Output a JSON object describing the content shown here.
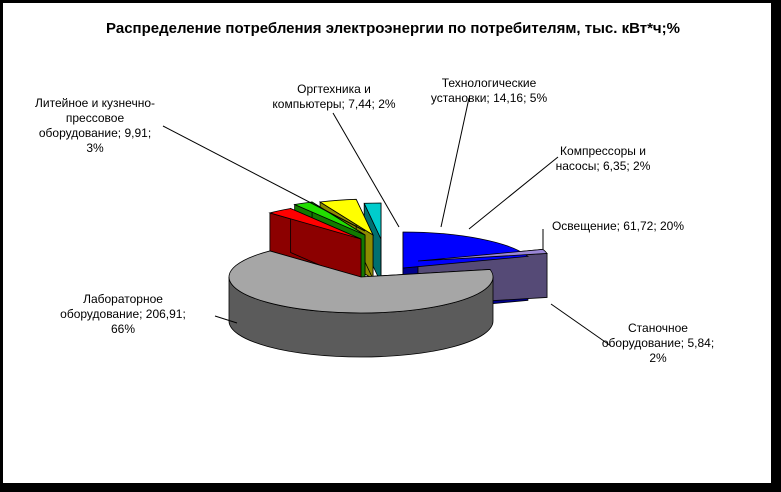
{
  "chart_data": {
    "type": "pie",
    "title": "Распределение потребления электроэнергии по потребителям, тыс. кВт*ч;%",
    "slices": [
      {
        "name": "Освещение",
        "value": 61.72,
        "percent": 20,
        "color": "#0000FF",
        "label_lines": [
          "Освещение; 61,72; 20%"
        ]
      },
      {
        "name": "Станочное оборудование",
        "value": 5.84,
        "percent": 2,
        "color": "#9A86D6",
        "label_lines": [
          "Станочное",
          "оборудование; 5,84;",
          "2%"
        ]
      },
      {
        "name": "Лабораторное оборудование",
        "value": 206.91,
        "percent": 66,
        "color": "#A6A6A6",
        "label_lines": [
          "Лабораторное",
          "оборудование; 206,91;",
          "66%"
        ]
      },
      {
        "name": "Литейное и кузнечно-прессовое оборудование",
        "value": 9.91,
        "percent": 3,
        "color": "#FF0000",
        "label_lines": [
          "Литейное и кузнечно-",
          "прессовое",
          "оборудование; 9,91;",
          "3%"
        ]
      },
      {
        "name": "Оргтехника и компьютеры",
        "value": 7.44,
        "percent": 2,
        "color": "#22DD00",
        "label_lines": [
          "Оргтехника и",
          "компьютеры; 7,44; 2%"
        ]
      },
      {
        "name": "Технологические установки",
        "value": 14.16,
        "percent": 5,
        "color": "#FFFF00",
        "label_lines": [
          "Технологические",
          "установки; 14,16; 5%"
        ]
      },
      {
        "name": "Компрессоры и насосы",
        "value": 6.35,
        "percent": 2,
        "color": "#00CCCC",
        "label_lines": [
          "Компрессоры и",
          "насосы; 6,35; 2%"
        ]
      }
    ],
    "legend": "none",
    "style": "3d-exploded-pie"
  }
}
